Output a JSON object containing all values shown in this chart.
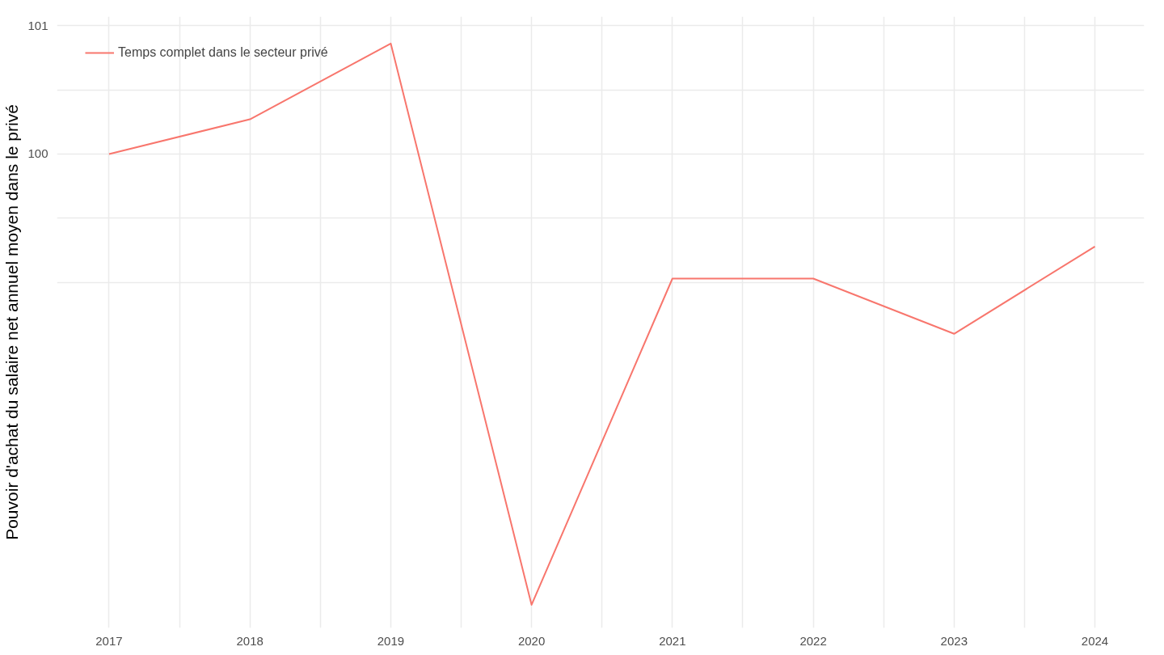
{
  "chart_data": {
    "type": "line",
    "ylabel": "Pouvoir d'achat du salaire net annuel moyen dans le privé",
    "x": [
      2017,
      2018,
      2019,
      2020,
      2021,
      2022,
      2023,
      2024
    ],
    "series": [
      {
        "name": "Temps complet dans le secteur privé",
        "color": "#f8766d",
        "values": [
          100.0,
          100.27,
          100.86,
          96.49,
          99.03,
          99.03,
          98.6,
          99.28
        ]
      }
    ],
    "xlim": [
      2016.63,
      2024.35
    ],
    "xticks": [
      2017,
      {
        "value": 2017.5,
        "label": null
      },
      2018,
      {
        "value": 2018.5,
        "label": null
      },
      2019,
      {
        "value": 2019.5,
        "label": null
      },
      2020,
      {
        "value": 2020.5,
        "label": null
      },
      2021,
      {
        "value": 2021.5,
        "label": null
      },
      2022,
      {
        "value": 2022.5,
        "label": null
      },
      2023,
      {
        "value": 2023.5,
        "label": null
      },
      2024
    ],
    "ylim": [
      96.31,
      101.07
    ],
    "yticks": [
      {
        "value": 99,
        "label": null
      },
      {
        "value": 99.5,
        "label": null
      },
      100,
      {
        "value": 100.5,
        "label": null
      },
      101
    ],
    "grid": true,
    "legend": "top left",
    "marker": "none",
    "line_style": "solid"
  }
}
